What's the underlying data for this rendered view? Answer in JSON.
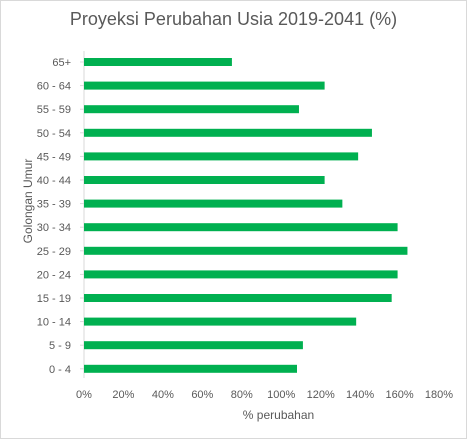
{
  "chart_data": {
    "type": "bar",
    "orientation": "horizontal",
    "title": "Proyeksi Perubahan Usia 2019-2041 (%)",
    "xlabel": "% perubahan",
    "ylabel": "Golongan Umur",
    "categories": [
      "65+",
      "60 - 64",
      "55 - 59",
      "50 - 54",
      "45 - 49",
      "40 - 44",
      "35 - 39",
      "30 - 34",
      "25 - 29",
      "20 - 24",
      "15 - 19",
      "10 - 14",
      "5 - 9",
      "0 - 4"
    ],
    "values": [
      75,
      122,
      109,
      146,
      139,
      122,
      131,
      159,
      164,
      159,
      156,
      138,
      111,
      108
    ],
    "xlim": [
      0,
      180
    ],
    "xticks": [
      "0%",
      "20%",
      "40%",
      "60%",
      "80%",
      "100%",
      "120%",
      "140%",
      "160%",
      "180%"
    ],
    "grid": false,
    "bar_color": "#00b050"
  }
}
